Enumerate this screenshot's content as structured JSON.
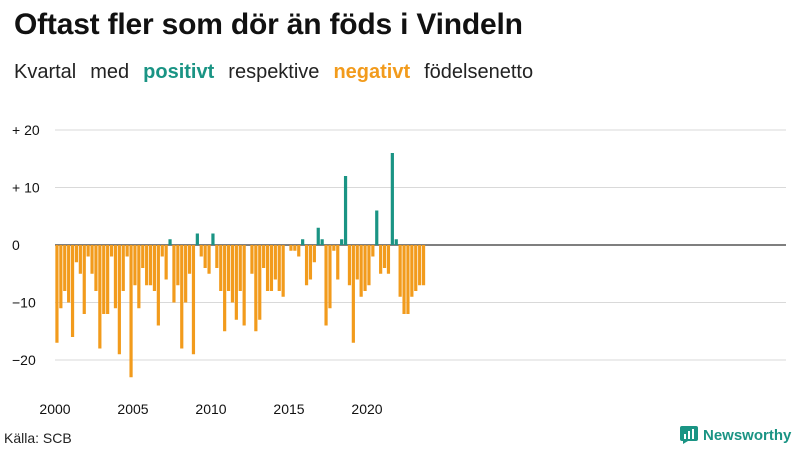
{
  "title": "Oftast fler som dör än föds i Vindeln",
  "subtitle": {
    "part1": "Kvartal",
    "part2": "med",
    "positive": "positivt",
    "part3": "respektive",
    "negative": "negativt",
    "part4": "födelsenetto"
  },
  "source": "Källa: SCB",
  "brand": "Newsworthy",
  "colors": {
    "positive": "#1a9484",
    "negative": "#f29b1c",
    "grid": "#d9d9d9",
    "axis": "#333333",
    "text": "#111111"
  },
  "chart_data": {
    "type": "bar",
    "title": "Oftast fler som dör än föds i Vindeln",
    "xlabel": "",
    "ylabel": "",
    "ylim": [
      -25,
      22
    ],
    "yticks": [
      20,
      10,
      0,
      -10,
      -20
    ],
    "ytick_labels": [
      "+ 20",
      "+ 10",
      "0",
      "−10",
      "−20"
    ],
    "xticks": [
      "2000",
      "2005",
      "2010",
      "2015",
      "2020"
    ],
    "start_year": 2000,
    "periods_per_year": 4,
    "series": [
      {
        "name": "Födelsenetto per kvartal",
        "values": [
          -17,
          -11,
          -8,
          -10,
          -16,
          -3,
          -5,
          -12,
          -2,
          -5,
          -8,
          -18,
          -12,
          -12,
          -2,
          -11,
          -19,
          -8,
          -2,
          -23,
          -7,
          -11,
          -4,
          -7,
          -7,
          -8,
          -14,
          -2,
          -6,
          1,
          -10,
          -7,
          -18,
          -10,
          -5,
          -19,
          2,
          -2,
          -4,
          -5,
          2,
          -4,
          -8,
          -15,
          -8,
          -10,
          -13,
          -8,
          -14,
          0,
          -5,
          -15,
          -13,
          -4,
          -8,
          -8,
          -6,
          -8,
          -9,
          0,
          -1,
          -1,
          -2,
          1,
          -7,
          -6,
          -3,
          3,
          1,
          -14,
          -11,
          -1,
          -6,
          1,
          12,
          -7,
          -17,
          -6,
          -9,
          -8,
          -7,
          -2,
          6,
          -5,
          -4,
          -5,
          16,
          1,
          -9,
          -12,
          -12,
          -9,
          -8,
          -7,
          -7
        ]
      }
    ]
  }
}
